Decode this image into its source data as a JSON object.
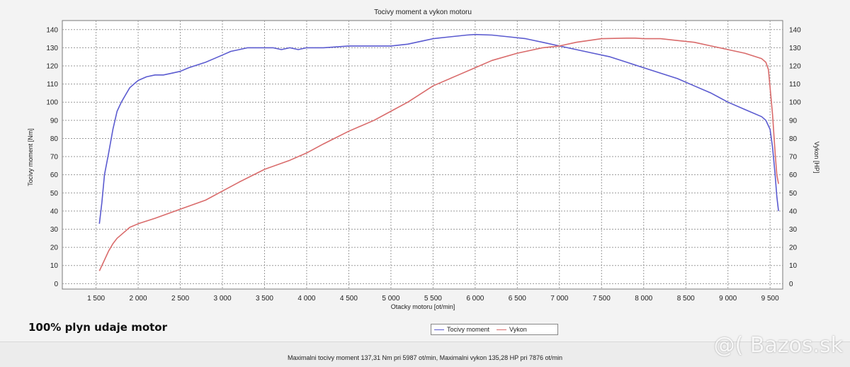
{
  "chart_data": {
    "type": "line",
    "title": "Tocivy moment a vykon motoru",
    "xlabel": "Otacky motoru [ot/min]",
    "ylabel_left": "Tocivy moment [Nm]",
    "ylabel_right": "Vykon [HP]",
    "xlim": [
      1100,
      9650
    ],
    "ylim_left": [
      -3,
      145
    ],
    "ylim_right": [
      -3,
      145
    ],
    "x_ticks": [
      1500,
      2000,
      2500,
      3000,
      3500,
      4000,
      4500,
      5000,
      5500,
      6000,
      6500,
      7000,
      7500,
      8000,
      8500,
      9000,
      9500
    ],
    "x_tick_labels": [
      "1 500",
      "2 000",
      "2 500",
      "3 000",
      "3 500",
      "4 000",
      "4 500",
      "5 000",
      "5 500",
      "6 000",
      "6 500",
      "7 000",
      "7 500",
      "8 000",
      "8 500",
      "9 000",
      "9 500"
    ],
    "y_ticks": [
      0,
      10,
      20,
      30,
      40,
      50,
      60,
      70,
      80,
      90,
      100,
      110,
      120,
      130,
      140
    ],
    "grid": true,
    "legend_position": "bottom-center",
    "series": [
      {
        "name": "Tocivy moment",
        "axis": "left",
        "color": "#5b5bd0",
        "x": [
          1540,
          1570,
          1600,
          1650,
          1700,
          1750,
          1800,
          1850,
          1900,
          1950,
          2000,
          2100,
          2200,
          2300,
          2400,
          2500,
          2600,
          2800,
          2900,
          3000,
          3100,
          3200,
          3300,
          3400,
          3500,
          3600,
          3700,
          3800,
          3900,
          4000,
          4200,
          4500,
          4800,
          5000,
          5200,
          5400,
          5500,
          5700,
          5900,
          6000,
          6200,
          6400,
          6600,
          6800,
          7000,
          7200,
          7400,
          7600,
          7800,
          8000,
          8200,
          8400,
          8600,
          8800,
          9000,
          9200,
          9400,
          9450,
          9500,
          9530,
          9560,
          9580,
          9600
        ],
        "values": [
          33,
          45,
          60,
          72,
          85,
          95,
          100,
          104,
          108,
          110,
          112,
          114,
          115,
          115,
          116,
          117,
          119,
          122,
          124,
          126,
          128,
          129,
          130,
          130,
          130,
          130,
          129,
          130,
          129,
          130,
          130,
          131,
          131,
          131,
          132,
          134,
          135,
          136,
          137,
          137.3,
          137,
          136,
          135,
          133,
          131,
          129,
          127,
          125,
          122,
          119,
          116,
          113,
          109,
          105,
          100,
          96,
          92,
          90,
          85,
          75,
          60,
          48,
          40
        ]
      },
      {
        "name": "Vykon",
        "axis": "right",
        "color": "#d96b6b",
        "x": [
          1540,
          1600,
          1650,
          1700,
          1750,
          1800,
          1900,
          2000,
          2200,
          2500,
          2800,
          3000,
          3200,
          3500,
          3800,
          4000,
          4200,
          4500,
          4800,
          5000,
          5200,
          5500,
          5800,
          6000,
          6200,
          6500,
          6800,
          7000,
          7200,
          7500,
          7800,
          7900,
          8000,
          8200,
          8400,
          8600,
          8800,
          9000,
          9200,
          9400,
          9450,
          9480,
          9500,
          9530,
          9560,
          9580,
          9600
        ],
        "values": [
          7,
          13,
          18,
          22,
          25,
          27,
          31,
          33,
          36,
          41,
          46,
          51,
          56,
          63,
          68,
          72,
          77,
          84,
          90,
          95,
          100,
          109,
          115,
          119,
          123,
          127,
          130,
          131,
          133,
          135,
          135.3,
          135.3,
          135,
          135,
          134,
          133,
          131,
          129,
          127,
          124,
          122,
          118,
          108,
          93,
          72,
          60,
          55
        ]
      }
    ]
  },
  "caption": "100% plyn udaje motor",
  "summary": "Maximalni tocivy moment 137,31 Nm pri 5987 ot/min,  Maximalni vykon 135,28 HP pri 7876 ot/min",
  "watermark": "@( Bazos.sk"
}
